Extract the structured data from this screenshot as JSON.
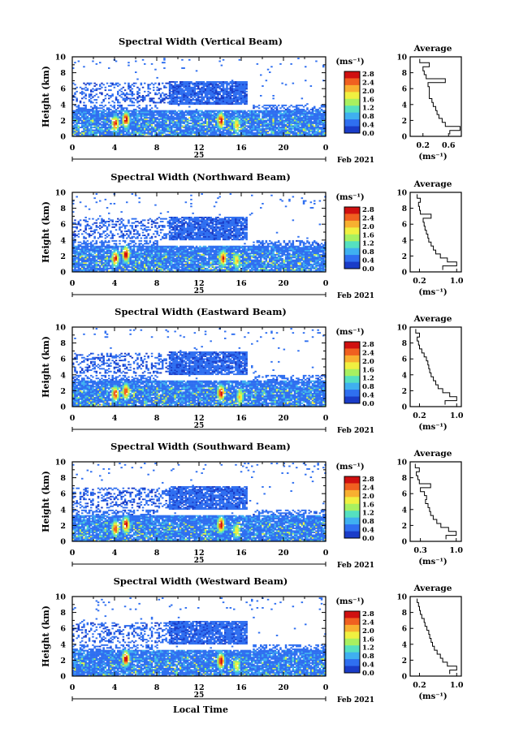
{
  "figure": {
    "date_label": "Feb 2021",
    "day_label": "25",
    "xaxis_label": "Local Time",
    "avg_title": "Average",
    "unit_label": "(ms⁻¹)",
    "colorbar_ticks": [
      "2.8",
      "2.4",
      "2.0",
      "1.6",
      "1.2",
      "0.8",
      "0.4",
      "0.0"
    ],
    "colors": [
      "#0b1f6b",
      "#1a3cc8",
      "#2f6ff0",
      "#3fb0f0",
      "#55e0c0",
      "#a8f060",
      "#f0f040",
      "#f8b030",
      "#f06020",
      "#d01010"
    ]
  },
  "chart_data": [
    {
      "type": "heatmap",
      "title": "Spectral Width (Vertical Beam)",
      "xlabel": "",
      "ylabel": "Height (km)",
      "xlim": [
        0,
        24
      ],
      "ylim": [
        0,
        10
      ],
      "x_ticks": [
        "0",
        "4",
        "8",
        "12",
        "16",
        "20",
        "0"
      ],
      "y_ticks": [
        "0",
        "2",
        "4",
        "6",
        "8",
        "10"
      ],
      "colorbar": {
        "label": "(ms⁻¹)",
        "min": 0.0,
        "max": 2.8
      },
      "hotspots": [
        {
          "x": 4.0,
          "y": 1.7,
          "v": 2.6
        },
        {
          "x": 5.0,
          "y": 2.2,
          "v": 2.8
        },
        {
          "x": 14.0,
          "y": 2.1,
          "v": 2.8
        },
        {
          "x": 15.5,
          "y": 1.5,
          "v": 2.0
        }
      ],
      "average_profile": {
        "xlabel": "(ms⁻¹)",
        "x_ticks": [
          "0.2",
          "0.6"
        ],
        "xlim": [
          0.0,
          0.8
        ],
        "height": [
          0.5,
          1.0,
          1.5,
          2.0,
          2.5,
          3.0,
          3.5,
          4.0,
          4.5,
          5.0,
          5.5,
          6.0,
          6.5,
          7.0,
          7.5,
          8.0,
          8.5,
          9.0,
          9.5
        ],
        "values": [
          0.62,
          0.78,
          0.55,
          0.5,
          0.45,
          0.42,
          0.4,
          0.36,
          0.34,
          0.3,
          0.3,
          0.3,
          0.28,
          0.55,
          0.25,
          0.22,
          0.2,
          0.3,
          0.15
        ]
      }
    },
    {
      "type": "heatmap",
      "title": "Spectral Width (Northward Beam)",
      "xlabel": "",
      "ylabel": "Height (km)",
      "xlim": [
        0,
        24
      ],
      "ylim": [
        0,
        10
      ],
      "x_ticks": [
        "0",
        "4",
        "8",
        "12",
        "16",
        "20",
        "0"
      ],
      "y_ticks": [
        "0",
        "2",
        "4",
        "6",
        "8",
        "10"
      ],
      "colorbar": {
        "label": "(ms⁻¹)",
        "min": 0.0,
        "max": 2.8
      },
      "hotspots": [
        {
          "x": 4.0,
          "y": 1.8,
          "v": 2.6
        },
        {
          "x": 5.0,
          "y": 2.3,
          "v": 2.8
        },
        {
          "x": 14.2,
          "y": 1.8,
          "v": 2.6
        },
        {
          "x": 15.5,
          "y": 1.5,
          "v": 2.0
        }
      ],
      "average_profile": {
        "xlabel": "(ms⁻¹)",
        "x_ticks": [
          "0.2",
          "1.0"
        ],
        "xlim": [
          0.0,
          1.1
        ],
        "height": [
          0.5,
          1.0,
          1.5,
          2.0,
          2.5,
          3.0,
          3.5,
          4.0,
          4.5,
          5.0,
          5.5,
          6.0,
          6.5,
          7.0,
          7.5,
          8.0,
          8.5,
          9.0,
          9.5
        ],
        "values": [
          0.7,
          1.0,
          0.8,
          0.65,
          0.55,
          0.5,
          0.45,
          0.4,
          0.38,
          0.35,
          0.32,
          0.3,
          0.28,
          0.45,
          0.22,
          0.2,
          0.18,
          0.22,
          0.15
        ]
      }
    },
    {
      "type": "heatmap",
      "title": "Spectral Width (Eastward Beam)",
      "xlabel": "",
      "ylabel": "Height (km)",
      "xlim": [
        0,
        24
      ],
      "ylim": [
        0,
        10
      ],
      "x_ticks": [
        "0",
        "4",
        "8",
        "12",
        "16",
        "20",
        "0"
      ],
      "y_ticks": [
        "0",
        "2",
        "4",
        "6",
        "8",
        "10"
      ],
      "colorbar": {
        "label": "(ms⁻¹)",
        "min": 0.0,
        "max": 2.8
      },
      "hotspots": [
        {
          "x": 4.0,
          "y": 1.7,
          "v": 2.6
        },
        {
          "x": 5.0,
          "y": 2.0,
          "v": 2.6
        },
        {
          "x": 14.0,
          "y": 1.8,
          "v": 2.8
        },
        {
          "x": 15.8,
          "y": 1.3,
          "v": 2.0
        }
      ],
      "average_profile": {
        "xlabel": "(ms⁻¹)",
        "x_ticks": [
          "0.2",
          "1.0"
        ],
        "xlim": [
          0.0,
          1.1
        ],
        "height": [
          0.5,
          1.0,
          1.5,
          2.0,
          2.5,
          3.0,
          3.5,
          4.0,
          4.5,
          5.0,
          5.5,
          6.0,
          6.5,
          7.0,
          7.5,
          8.0,
          8.5,
          9.0,
          9.5
        ],
        "values": [
          0.75,
          1.0,
          0.85,
          0.7,
          0.6,
          0.55,
          0.5,
          0.45,
          0.42,
          0.4,
          0.38,
          0.35,
          0.3,
          0.25,
          0.2,
          0.18,
          0.15,
          0.2,
          0.12
        ]
      }
    },
    {
      "type": "heatmap",
      "title": "Spectral Width (Southward Beam)",
      "xlabel": "",
      "ylabel": "Height (km)",
      "xlim": [
        0,
        24
      ],
      "ylim": [
        0,
        10
      ],
      "x_ticks": [
        "0",
        "4",
        "8",
        "12",
        "16",
        "20",
        "0"
      ],
      "y_ticks": [
        "0",
        "2",
        "4",
        "6",
        "8",
        "10"
      ],
      "colorbar": {
        "label": "(ms⁻¹)",
        "min": 0.0,
        "max": 2.8
      },
      "hotspots": [
        {
          "x": 4.0,
          "y": 1.7,
          "v": 2.5
        },
        {
          "x": 5.0,
          "y": 2.2,
          "v": 2.8
        },
        {
          "x": 14.0,
          "y": 2.2,
          "v": 2.8
        },
        {
          "x": 15.5,
          "y": 1.4,
          "v": 1.9
        }
      ],
      "average_profile": {
        "xlabel": "(ms⁻¹)",
        "x_ticks": [
          "0.3",
          "1.0"
        ],
        "xlim": [
          0.1,
          1.1
        ],
        "height": [
          0.5,
          1.0,
          1.5,
          2.0,
          2.5,
          3.0,
          3.5,
          4.0,
          4.5,
          5.0,
          5.5,
          6.0,
          6.5,
          7.0,
          7.5,
          8.0,
          8.5,
          9.0,
          9.5
        ],
        "values": [
          0.8,
          1.0,
          0.85,
          0.7,
          0.62,
          0.55,
          0.5,
          0.48,
          0.45,
          0.4,
          0.42,
          0.38,
          0.3,
          0.5,
          0.28,
          0.25,
          0.22,
          0.28,
          0.2
        ]
      }
    },
    {
      "type": "heatmap",
      "title": "Spectral Width (Westward Beam)",
      "xlabel": "Local Time",
      "ylabel": "Height (km)",
      "xlim": [
        0,
        24
      ],
      "ylim": [
        0,
        10
      ],
      "x_ticks": [
        "0",
        "4",
        "8",
        "12",
        "16",
        "20",
        "0"
      ],
      "y_ticks": [
        "0",
        "2",
        "4",
        "6",
        "8",
        "10"
      ],
      "colorbar": {
        "label": "(ms⁻¹)",
        "min": 0.0,
        "max": 2.8
      },
      "hotspots": [
        {
          "x": 5.0,
          "y": 2.3,
          "v": 2.8
        },
        {
          "x": 14.0,
          "y": 2.0,
          "v": 2.8
        },
        {
          "x": 15.5,
          "y": 1.4,
          "v": 1.9
        }
      ],
      "average_profile": {
        "xlabel": "(ms⁻¹)",
        "x_ticks": [
          "0.2",
          "1.0"
        ],
        "xlim": [
          0.0,
          1.1
        ],
        "height": [
          0.5,
          1.0,
          1.5,
          2.0,
          2.5,
          3.0,
          3.5,
          4.0,
          4.5,
          5.0,
          5.5,
          6.0,
          6.5,
          7.0,
          7.5,
          8.0,
          8.5,
          9.0,
          9.5
        ],
        "values": [
          0.85,
          1.0,
          0.8,
          0.7,
          0.65,
          0.58,
          0.52,
          0.48,
          0.45,
          0.42,
          0.4,
          0.36,
          0.32,
          0.3,
          0.25,
          0.22,
          0.2,
          0.18,
          0.15
        ]
      }
    }
  ]
}
